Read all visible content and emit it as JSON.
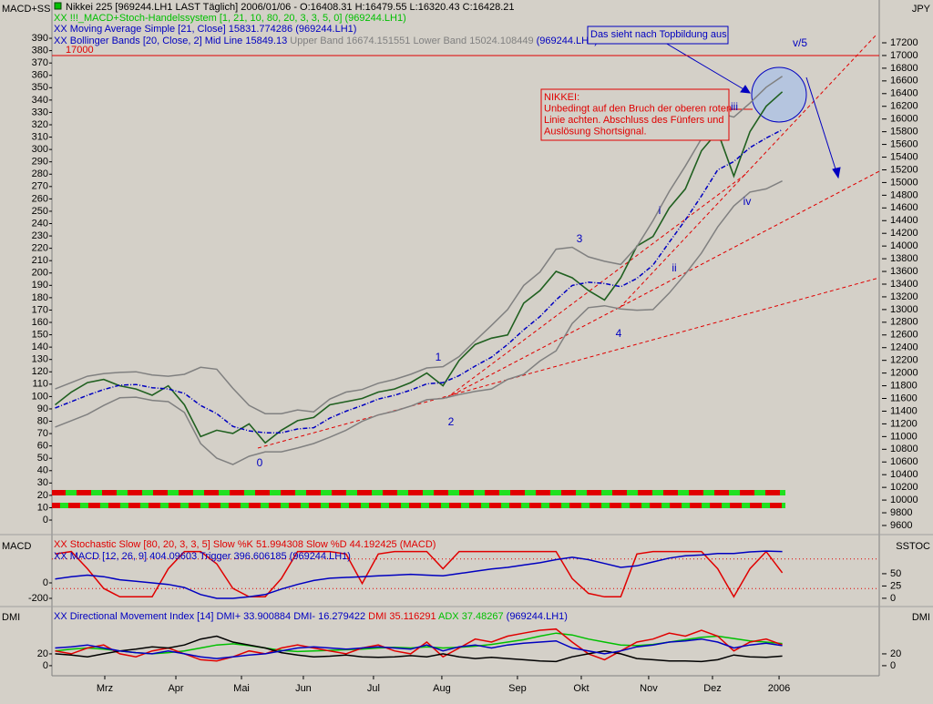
{
  "chart_data": [
    {
      "type": "line",
      "y_label": "MACD+SS",
      "y2_label": "JPY",
      "labels": [
        [
          {
            "text": "Nikkei 225 [969244.LH1 LAST Täglich] 2006/01/06 - O:16408.31 H:16479.55 L:16320.43 C:16428.21",
            "color": "#000000"
          }
        ],
        [
          {
            "text": "XX !!!_MACD+Stoch-Handelssystem [1, 21, 10, 80, 20, 3, 3, 5, 0] (969244.LH1)",
            "color": "#00c000"
          }
        ],
        [
          {
            "text": "XX Moving Average Simple [21, Close] 15831.774286 (969244.LH1)",
            "color": "#0000c0"
          }
        ],
        [
          {
            "text": "XX Bollinger Bands [20, Close, 2] Mid Line 15849.13",
            "color": "#0000c0"
          },
          {
            "text": " Upper Band 16674.151551 Lower Band 15024.108449",
            "color": "#808080"
          },
          {
            "text": " (969244.LH1)",
            "color": "#0000c0"
          }
        ]
      ],
      "xlim": [
        -0.2,
        51
      ],
      "ylim": [
        -10.3,
        421
      ],
      "yticks": [
        0,
        10,
        20,
        30,
        40,
        50,
        60,
        70,
        80,
        90,
        100,
        110,
        120,
        130,
        140,
        150,
        160,
        170,
        180,
        190,
        200,
        210,
        220,
        230,
        240,
        250,
        260,
        270,
        280,
        290,
        300,
        310,
        320,
        330,
        340,
        350,
        360,
        370,
        380,
        390
      ],
      "y2lim": [
        9485,
        17874
      ],
      "y2ticks": [
        9600,
        9800,
        10000,
        10200,
        10400,
        10600,
        10800,
        11000,
        11200,
        11400,
        11600,
        11800,
        12000,
        12200,
        12400,
        12600,
        12800,
        13000,
        13200,
        13400,
        13600,
        13800,
        14000,
        14200,
        14400,
        14600,
        14800,
        15000,
        15200,
        15400,
        15600,
        15800,
        16000,
        16200,
        16400,
        16600,
        16800,
        17000,
        17200
      ],
      "hline": 17000,
      "hline_color": "#e00000",
      "x": [
        0,
        1,
        2,
        3,
        4,
        5,
        6,
        7,
        8,
        9,
        10,
        11,
        12,
        13,
        14,
        15,
        16,
        17,
        18,
        19,
        20,
        21,
        22,
        23,
        24,
        25,
        26,
        27,
        28,
        29,
        30,
        31,
        32,
        33,
        34,
        35,
        36,
        37,
        38,
        39,
        40,
        41,
        42,
        43,
        44,
        45
      ],
      "series": [
        {
          "color": "#206020",
          "axis": "y2",
          "values": [
            11500,
            11700,
            11850,
            11900,
            11800,
            11750,
            11650,
            11800,
            11500,
            11000,
            11100,
            11050,
            11200,
            10900,
            11100,
            11250,
            11300,
            11500,
            11550,
            11600,
            11700,
            11750,
            11850,
            12000,
            11800,
            12200,
            12450,
            12550,
            12600,
            13100,
            13300,
            13600,
            13500,
            13300,
            13150,
            13500,
            14000,
            14150,
            14600,
            14900,
            15500,
            15800,
            15100,
            15800,
            16200,
            16428.21
          ]
        },
        {
          "color": "#0000c0",
          "axis": "y2",
          "values": [
            11450,
            11550,
            11650,
            11740,
            11810,
            11820,
            11770,
            11750,
            11680,
            11490,
            11360,
            11160,
            11090,
            11060,
            11060,
            11120,
            11140,
            11290,
            11400,
            11490,
            11590,
            11650,
            11730,
            11830,
            11850,
            11960,
            12110,
            12250,
            12450,
            12680,
            12890,
            13150,
            13380,
            13430,
            13410,
            13360,
            13490,
            13700,
            14060,
            14410,
            14790,
            15200,
            15330,
            15550,
            15700,
            15831.77
          ]
        },
        {
          "color": "#808080",
          "axis": "y2",
          "values": [
            11750,
            11850,
            11950,
            11990,
            12010,
            12020,
            11970,
            11950,
            11980,
            12090,
            12060,
            11760,
            11490,
            11360,
            11360,
            11420,
            11390,
            11590,
            11700,
            11740,
            11840,
            11900,
            11980,
            12080,
            12100,
            12260,
            12510,
            12750,
            13000,
            13380,
            13590,
            13950,
            13980,
            13830,
            13760,
            13710,
            13990,
            14400,
            14860,
            15260,
            15690,
            16100,
            16030,
            16250,
            16500,
            16674.15
          ]
        },
        {
          "color": "#808080",
          "axis": "y2",
          "values": [
            11150,
            11250,
            11350,
            11490,
            11610,
            11620,
            11570,
            11550,
            11380,
            10890,
            10660,
            10560,
            10690,
            10760,
            10760,
            10820,
            10890,
            10990,
            11100,
            11240,
            11340,
            11400,
            11480,
            11580,
            11600,
            11660,
            11710,
            11750,
            11900,
            11980,
            12190,
            12350,
            12780,
            13030,
            13060,
            13010,
            12990,
            13000,
            13260,
            13560,
            13890,
            14300,
            14630,
            14850,
            14900,
            15024.11
          ]
        }
      ],
      "annotations": [
        {
          "text": "0",
          "color": "#0000c0"
        },
        {
          "text": "1",
          "color": "#0000c0"
        },
        {
          "text": "2",
          "color": "#0000c0"
        },
        {
          "text": "3",
          "color": "#0000c0"
        },
        {
          "text": "4",
          "color": "#0000c0"
        },
        {
          "text": "i",
          "color": "#0000c0"
        },
        {
          "text": "ii",
          "color": "#0000c0"
        },
        {
          "text": "iii",
          "color": "#0000c0"
        },
        {
          "text": "iv",
          "color": "#0000c0"
        },
        {
          "text": "v/5",
          "color": "#0000c0"
        }
      ],
      "notes": [
        {
          "lines": [
            "Das sieht nach Topbildung aus"
          ],
          "color": "#0000c0"
        },
        {
          "lines": [
            "NIKKEI:",
            "Unbedingt auf den Bruch der oberen roten",
            "Linie achten. Abschluss des Fünfers und",
            "Auslösung Shortsignal."
          ],
          "color": "#e00000"
        }
      ]
    },
    {
      "type": "line",
      "y_label": "MACD",
      "y2_label": "SSTOC",
      "labels": [
        [
          {
            "text": "XX Stochastic Slow [80, 20, 3, 3, 5] Slow %K 51.994308 Slow %D 44.192425 (MACD)",
            "color": "#e00000"
          }
        ],
        [
          {
            "text": "XX MACD [12, 26, 9] 404.09603 Trigger 396.606185 (969244.LH1)",
            "color": "#0000c0"
          }
        ]
      ],
      "xlim": [
        -0.2,
        51
      ],
      "ylim": [
        -294,
        588
      ],
      "yticks": [
        -200,
        0
      ],
      "y2lim": [
        -15,
        124
      ],
      "y2ticks": [
        0,
        25,
        50
      ],
      "x": [
        0,
        1,
        2,
        3,
        4,
        5,
        6,
        7,
        8,
        9,
        10,
        11,
        12,
        13,
        14,
        15,
        16,
        17,
        18,
        19,
        20,
        21,
        22,
        23,
        24,
        25,
        26,
        27,
        28,
        29,
        30,
        31,
        32,
        33,
        34,
        35,
        36,
        37,
        38,
        39,
        40,
        41,
        42,
        43,
        44,
        45
      ],
      "series": [
        {
          "color": "#e00000",
          "axis": "y2",
          "values": [
            90,
            95,
            60,
            20,
            3,
            3,
            3,
            60,
            95,
            95,
            70,
            20,
            3,
            3,
            40,
            95,
            95,
            95,
            90,
            30,
            90,
            95,
            95,
            95,
            60,
            95,
            95,
            95,
            95,
            95,
            95,
            95,
            40,
            10,
            3,
            3,
            90,
            95,
            95,
            95,
            95,
            60,
            3,
            60,
            95,
            51.99
          ]
        },
        {
          "color": "#0000c0",
          "axis": "y",
          "values": [
            50,
            80,
            100,
            80,
            40,
            20,
            0,
            -20,
            -60,
            -150,
            -200,
            -200,
            -180,
            -150,
            -80,
            -20,
            30,
            60,
            70,
            80,
            90,
            100,
            110,
            100,
            90,
            120,
            150,
            180,
            200,
            230,
            260,
            300,
            330,
            300,
            250,
            200,
            220,
            270,
            320,
            350,
            360,
            380,
            380,
            400,
            410,
            404.1
          ]
        }
      ]
    },
    {
      "type": "line",
      "y_label": "DMI",
      "y2_label": "DMI",
      "labels": [
        [
          {
            "text": "XX Directional Movement Index [14] DMI+ 33.900884 DMI- 16.279422",
            "color": "#0000c0"
          },
          {
            "text": " DMI 35.116291",
            "color": "#e00000"
          },
          {
            "text": " ADX 37.48267",
            "color": "#00c000"
          },
          {
            "text": " (969244.LH1)",
            "color": "#0000c0"
          }
        ]
      ],
      "xlim": [
        -0.2,
        51
      ],
      "ylim": [
        -14,
        97
      ],
      "yticks": [
        0,
        20
      ],
      "y2lim": [
        -14,
        97
      ],
      "y2ticks": [
        0,
        20
      ],
      "xticks": [
        {
          "value": 3.07,
          "label": "Mrz"
        },
        {
          "value": 7.47,
          "label": "Apr"
        },
        {
          "value": 11.53,
          "label": "Mai"
        },
        {
          "value": 15.36,
          "label": "Jun"
        },
        {
          "value": 19.7,
          "label": "Jul"
        },
        {
          "value": 23.93,
          "label": "Aug"
        },
        {
          "value": 28.61,
          "label": "Sep"
        },
        {
          "value": 32.56,
          "label": "Okt"
        },
        {
          "value": 36.73,
          "label": "Nov"
        },
        {
          "value": 40.68,
          "label": "Dez"
        },
        {
          "value": 44.8,
          "label": "2006"
        }
      ],
      "x": [
        0,
        1,
        2,
        3,
        4,
        5,
        6,
        7,
        8,
        9,
        10,
        11,
        12,
        13,
        14,
        15,
        16,
        17,
        18,
        19,
        20,
        21,
        22,
        23,
        24,
        25,
        26,
        27,
        28,
        29,
        30,
        31,
        32,
        33,
        34,
        35,
        36,
        37,
        38,
        39,
        40,
        41,
        42,
        43,
        44,
        45
      ],
      "series": [
        {
          "color": "#00c000",
          "axis": "y",
          "values": [
            25,
            28,
            30,
            28,
            25,
            22,
            20,
            22,
            25,
            30,
            35,
            37,
            34,
            30,
            26,
            24,
            25,
            26,
            27,
            28,
            30,
            31,
            30,
            32,
            30,
            31,
            33,
            36,
            40,
            44,
            50,
            55,
            52,
            45,
            40,
            35,
            34,
            36,
            40,
            44,
            48,
            50,
            46,
            42,
            40,
            37.48
          ]
        },
        {
          "color": "#e00000",
          "axis": "y",
          "values": [
            25,
            20,
            30,
            35,
            20,
            15,
            25,
            30,
            20,
            10,
            8,
            15,
            25,
            20,
            30,
            35,
            30,
            25,
            20,
            30,
            35,
            25,
            20,
            40,
            15,
            30,
            45,
            40,
            50,
            55,
            60,
            62,
            40,
            20,
            10,
            25,
            40,
            45,
            55,
            50,
            60,
            50,
            25,
            40,
            45,
            35.12
          ]
        },
        {
          "color": "#000000",
          "axis": "y",
          "values": [
            20,
            18,
            15,
            20,
            25,
            28,
            32,
            30,
            35,
            45,
            50,
            40,
            35,
            30,
            22,
            18,
            15,
            16,
            18,
            15,
            14,
            15,
            17,
            15,
            20,
            15,
            12,
            14,
            12,
            10,
            8,
            7,
            15,
            20,
            25,
            20,
            12,
            10,
            8,
            8,
            7,
            10,
            18,
            15,
            14,
            16.28
          ]
        },
        {
          "color": "#0000c0",
          "axis": "y",
          "values": [
            30,
            32,
            35,
            30,
            25,
            22,
            20,
            25,
            20,
            15,
            12,
            15,
            18,
            20,
            25,
            30,
            32,
            30,
            28,
            30,
            32,
            30,
            28,
            35,
            25,
            32,
            35,
            30,
            35,
            38,
            40,
            42,
            30,
            25,
            20,
            25,
            32,
            35,
            40,
            42,
            45,
            40,
            30,
            35,
            38,
            33.9
          ]
        }
      ]
    }
  ]
}
